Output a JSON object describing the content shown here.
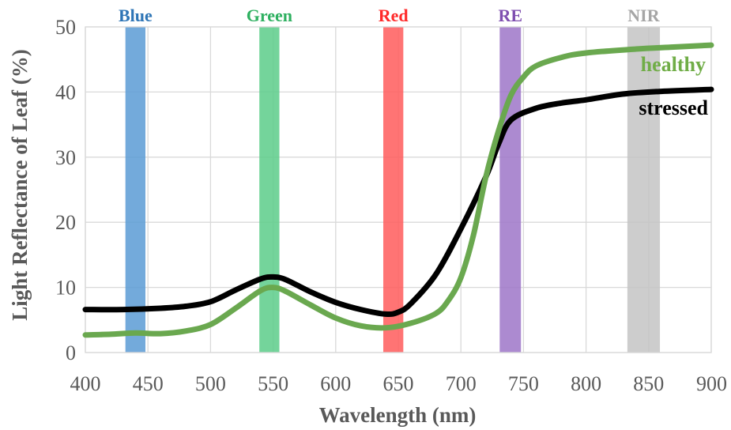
{
  "chart_data": {
    "type": "line",
    "title": "",
    "xlabel": "Wavelength (nm)",
    "ylabel": "Light Reflectance of Leaf (%)",
    "xlim": [
      400,
      900
    ],
    "ylim": [
      0,
      50
    ],
    "x_ticks": [
      400,
      450,
      500,
      550,
      600,
      650,
      700,
      750,
      800,
      850,
      900
    ],
    "y_ticks": [
      0,
      10,
      20,
      30,
      40,
      50
    ],
    "grid": true,
    "bands": [
      {
        "label": "Blue",
        "from": 432,
        "to": 448,
        "color": "#5b9bd5",
        "label_color": "#2e75b6"
      },
      {
        "label": "Green",
        "from": 539,
        "to": 555,
        "color": "#5ccc8a",
        "label_color": "#2eb060"
      },
      {
        "label": "Red",
        "from": 638,
        "to": 654,
        "color": "#ff5c5c",
        "label_color": "#ff2a2a"
      },
      {
        "label": "RE",
        "from": 731,
        "to": 748,
        "color": "#9e76c8",
        "label_color": "#7f4fb0"
      },
      {
        "label": "NIR",
        "from": 833,
        "to": 859,
        "color": "#c4c4c4",
        "label_color": "#a6a6a6"
      }
    ],
    "series": [
      {
        "name": "healthy",
        "color": "#6aa84f",
        "label_color": "#70ad47",
        "points": [
          [
            400,
            2.7
          ],
          [
            420,
            2.8
          ],
          [
            440,
            3.0
          ],
          [
            460,
            2.9
          ],
          [
            480,
            3.3
          ],
          [
            500,
            4.3
          ],
          [
            520,
            6.8
          ],
          [
            540,
            9.5
          ],
          [
            550,
            10.0
          ],
          [
            560,
            9.4
          ],
          [
            580,
            7.3
          ],
          [
            600,
            5.3
          ],
          [
            620,
            4.1
          ],
          [
            640,
            3.8
          ],
          [
            660,
            4.5
          ],
          [
            680,
            6.0
          ],
          [
            690,
            8.0
          ],
          [
            700,
            11.5
          ],
          [
            710,
            18.0
          ],
          [
            720,
            27.0
          ],
          [
            730,
            34.0
          ],
          [
            740,
            39.5
          ],
          [
            750,
            42.3
          ],
          [
            760,
            44.0
          ],
          [
            780,
            45.3
          ],
          [
            800,
            46.0
          ],
          [
            840,
            46.6
          ],
          [
            870,
            46.9
          ],
          [
            900,
            47.2
          ]
        ]
      },
      {
        "name": "stressed",
        "color": "#000000",
        "label_color": "#000000",
        "points": [
          [
            400,
            6.6
          ],
          [
            430,
            6.6
          ],
          [
            460,
            6.8
          ],
          [
            480,
            7.1
          ],
          [
            500,
            7.8
          ],
          [
            520,
            9.6
          ],
          [
            540,
            11.3
          ],
          [
            550,
            11.6
          ],
          [
            560,
            11.2
          ],
          [
            580,
            9.3
          ],
          [
            600,
            7.7
          ],
          [
            620,
            6.6
          ],
          [
            640,
            5.9
          ],
          [
            650,
            6.2
          ],
          [
            660,
            7.5
          ],
          [
            680,
            12.0
          ],
          [
            700,
            19.0
          ],
          [
            720,
            27.0
          ],
          [
            730,
            32.0
          ],
          [
            740,
            35.7
          ],
          [
            760,
            37.5
          ],
          [
            780,
            38.3
          ],
          [
            800,
            38.8
          ],
          [
            830,
            39.7
          ],
          [
            860,
            40.1
          ],
          [
            900,
            40.4
          ]
        ]
      }
    ]
  }
}
